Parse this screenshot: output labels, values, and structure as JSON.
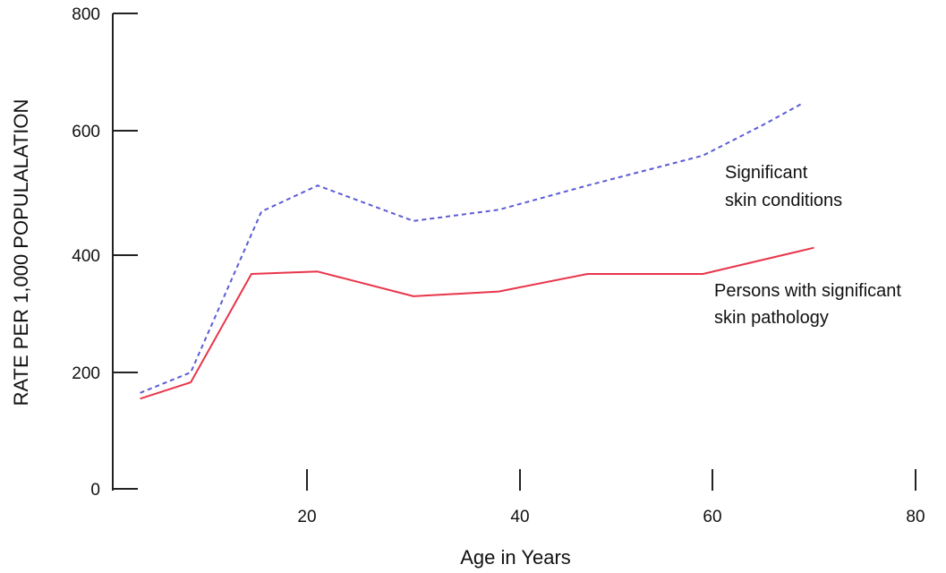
{
  "chart_data": {
    "type": "line",
    "title": "",
    "xlabel": "Age in Years",
    "ylabel": "RATE PER 1,000 POPULALATION",
    "xlim": [
      0,
      80
    ],
    "ylim": [
      0,
      800
    ],
    "x_ticks": [
      "20",
      "40",
      "60",
      "80"
    ],
    "y_ticks": [
      "0",
      "200",
      "400",
      "600",
      "800"
    ],
    "grid": false,
    "series": [
      {
        "annotation_lines": [
          "Significant",
          "skin conditions"
        ],
        "color": "#5b5bd6",
        "style": "dashed",
        "points": [
          [
            3.5,
            165
          ],
          [
            8.5,
            200
          ],
          [
            15.5,
            470
          ],
          [
            21,
            512
          ],
          [
            30,
            455
          ],
          [
            38,
            473
          ],
          [
            47,
            512
          ],
          [
            59,
            560
          ],
          [
            65,
            610
          ],
          [
            69,
            648
          ]
        ]
      },
      {
        "annotation_lines": [
          "Persons with significant",
          "skin pathology"
        ],
        "color": "#e8354a",
        "style": "solid",
        "points": [
          [
            3.5,
            155
          ],
          [
            8.5,
            183
          ],
          [
            14.5,
            368
          ],
          [
            21,
            372
          ],
          [
            30,
            330
          ],
          [
            38,
            338
          ],
          [
            47,
            368
          ],
          [
            59,
            368
          ],
          [
            70,
            412
          ]
        ]
      }
    ]
  }
}
